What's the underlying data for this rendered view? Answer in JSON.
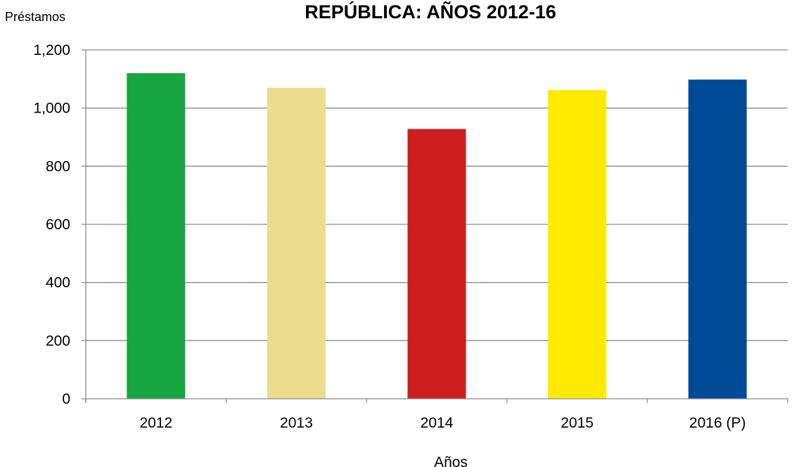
{
  "chart_data": {
    "type": "bar",
    "title": "REPÚBLICA: AÑOS 2012-16",
    "ylabel": "Préstamos",
    "xlabel": "Años",
    "categories": [
      "2012",
      "2013",
      "2014",
      "2015",
      "2016 (P)"
    ],
    "values": [
      1120,
      1070,
      928,
      1062,
      1098
    ],
    "colors": [
      "#17a53f",
      "#ebdc8e",
      "#cc1e1e",
      "#ffea00",
      "#004a98"
    ],
    "ylim": [
      0,
      1200
    ],
    "yticks": [
      0,
      200,
      400,
      600,
      800,
      1000,
      1200
    ],
    "ytick_labels": [
      "0",
      "200",
      "400",
      "600",
      "800",
      "1,000",
      "1,200"
    ],
    "grid": true,
    "legend": "none"
  }
}
